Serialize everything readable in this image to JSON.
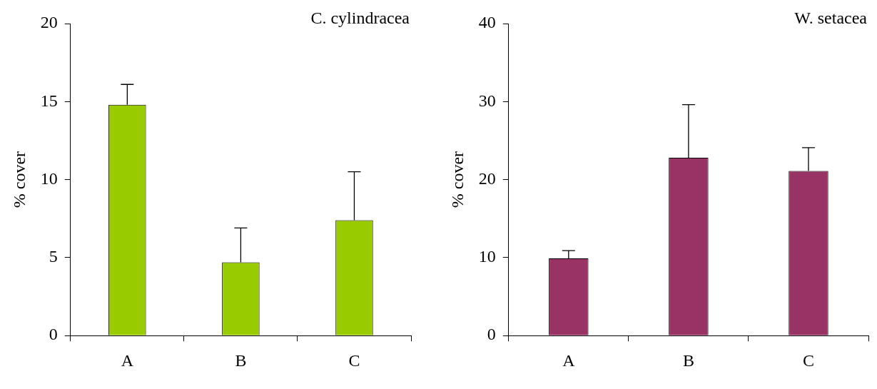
{
  "chart_data": [
    {
      "type": "bar",
      "title": "C. cylindracea",
      "ylabel": "% cover",
      "categories": [
        "A",
        "B",
        "C"
      ],
      "values": [
        14.8,
        4.7,
        7.4
      ],
      "color": "#99cc00",
      "errors": [
        [
          14.8,
          16.1
        ],
        [
          4.7,
          6.9
        ],
        [
          7.4,
          10.5
        ]
      ],
      "ylim": [
        0,
        20
      ],
      "yticks": [
        0,
        5,
        10,
        15,
        20
      ],
      "grid": false,
      "legend": false
    },
    {
      "type": "bar",
      "title": "W. setacea",
      "ylabel": "% cover",
      "categories": [
        "A",
        "B",
        "C"
      ],
      "values": [
        9.9,
        22.8,
        21.1
      ],
      "color": "#993366",
      "errors": [
        [
          9.9,
          10.9
        ],
        [
          22.8,
          29.6
        ],
        [
          21.1,
          24.1
        ]
      ],
      "ylim": [
        0,
        40
      ],
      "yticks": [
        0,
        10,
        20,
        30,
        40
      ],
      "grid": false,
      "legend": false
    }
  ]
}
